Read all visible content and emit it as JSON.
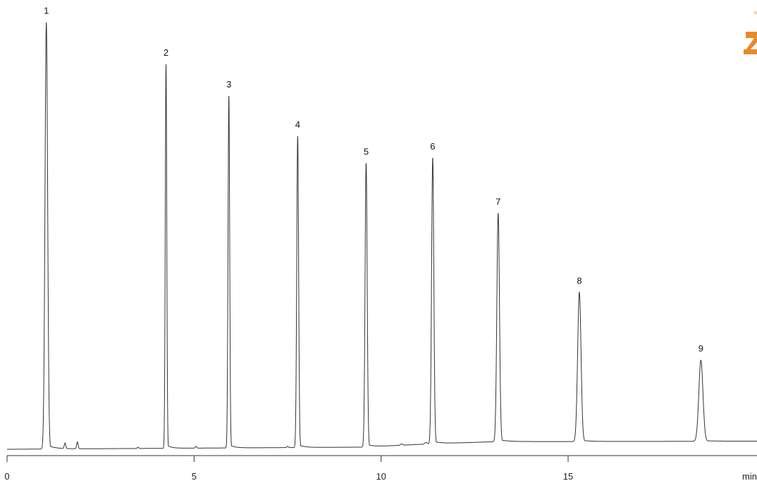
{
  "chart_data": {
    "type": "line",
    "title": "",
    "xlabel": "",
    "ylabel": "",
    "x_unit_label": "min",
    "xlim": [
      0,
      20
    ],
    "ylim": [
      0,
      100
    ],
    "x_ticks": [
      0,
      5,
      10,
      15
    ],
    "x_tick_labels": [
      "0",
      "5",
      "10",
      "15"
    ],
    "grid": false,
    "legend": "none",
    "line_color": "#333333",
    "peaks": [
      {
        "label": "1",
        "time": 1.05,
        "height": 100,
        "width": 0.035
      },
      {
        "label": "2",
        "time": 4.25,
        "height": 90,
        "width": 0.02
      },
      {
        "label": "3",
        "time": 5.93,
        "height": 82.5,
        "width": 0.022
      },
      {
        "label": "4",
        "time": 7.77,
        "height": 73,
        "width": 0.025
      },
      {
        "label": "5",
        "time": 9.6,
        "height": 66.5,
        "width": 0.028
      },
      {
        "label": "6",
        "time": 11.38,
        "height": 67,
        "width": 0.03
      },
      {
        "label": "7",
        "time": 13.13,
        "height": 53.5,
        "width": 0.035
      },
      {
        "label": "8",
        "time": 15.3,
        "height": 35,
        "width": 0.045
      },
      {
        "label": "9",
        "time": 18.55,
        "height": 19,
        "width": 0.055
      }
    ],
    "minor_peaks": [
      {
        "time": 1.55,
        "height": 1.3,
        "width": 0.02
      },
      {
        "time": 1.88,
        "height": 1.6,
        "width": 0.02
      },
      {
        "time": 3.5,
        "height": 0.3,
        "width": 0.02
      },
      {
        "time": 5.05,
        "height": 0.4,
        "width": 0.02
      },
      {
        "time": 7.5,
        "height": 0.3,
        "width": 0.02
      },
      {
        "time": 10.55,
        "height": 0.3,
        "width": 0.03
      },
      {
        "time": 11.2,
        "height": 0.4,
        "width": 0.03
      }
    ],
    "baseline": [
      {
        "time": 0,
        "value": 0
      },
      {
        "time": 9.5,
        "value": 0.5
      },
      {
        "time": 11.4,
        "value": 1.3
      },
      {
        "time": 13.13,
        "value": 1.8
      },
      {
        "time": 15.3,
        "value": 1.8
      },
      {
        "time": 20,
        "value": 1.9
      }
    ]
  },
  "logo": {
    "color": "#e8892a",
    "icon": "z-logo-icon"
  }
}
